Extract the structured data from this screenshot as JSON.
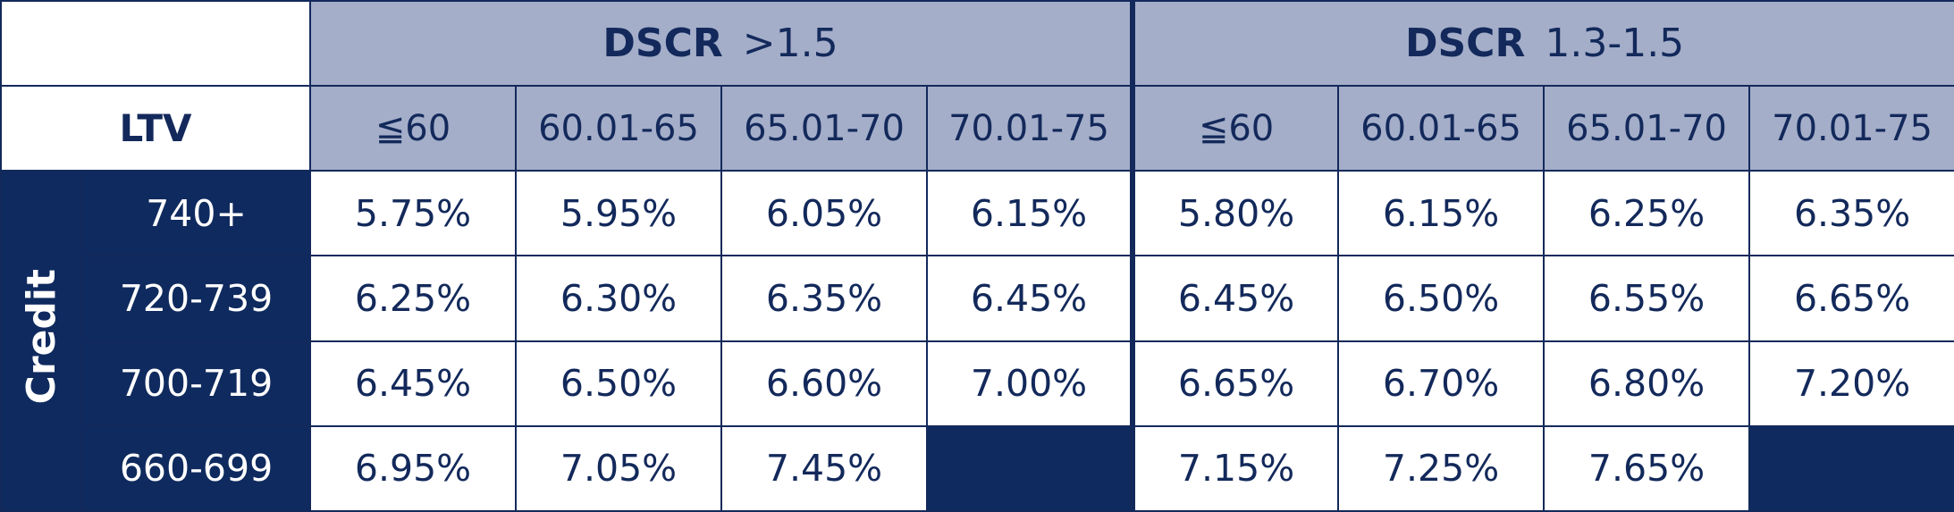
{
  "header_groups": [
    {
      "label": "DSCR",
      "range": ">1.5"
    },
    {
      "label": "DSCR",
      "range": "1.3-1.5"
    }
  ],
  "ltv_label": "LTV",
  "ltv_columns": [
    "≦60",
    "60.01-65",
    "65.01-70",
    "70.01-75",
    "≦60",
    "60.01-65",
    "65.01-70",
    "70.01-75"
  ],
  "credit_label": "Credit",
  "rows": [
    {
      "score": "740+",
      "rates": [
        "5.75%",
        "5.95%",
        "6.05%",
        "6.15%",
        "5.80%",
        "6.15%",
        "6.25%",
        "6.35%"
      ]
    },
    {
      "score": "720-739",
      "rates": [
        "6.25%",
        "6.30%",
        "6.35%",
        "6.45%",
        "6.45%",
        "6.50%",
        "6.55%",
        "6.65%"
      ]
    },
    {
      "score": "700-719",
      "rates": [
        "6.45%",
        "6.50%",
        "6.60%",
        "7.00%",
        "6.65%",
        "6.70%",
        "6.80%",
        "7.20%"
      ]
    },
    {
      "score": "660-699",
      "rates": [
        "6.95%",
        "7.05%",
        "7.45%",
        null,
        "7.15%",
        "7.25%",
        "7.65%",
        null
      ]
    }
  ]
}
